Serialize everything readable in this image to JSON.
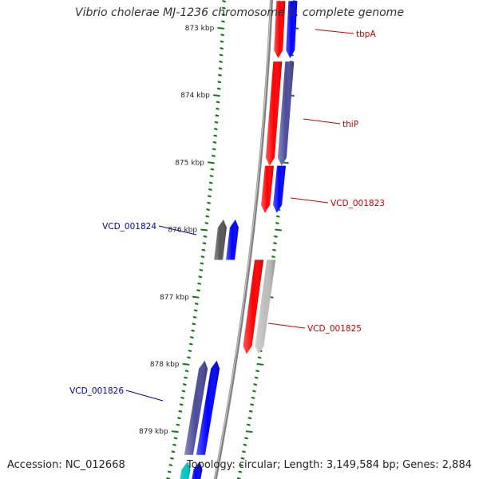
{
  "title": "Vibrio cholerae MJ-1236 chromosome 1, complete genome",
  "footer": {
    "accession": "Accession: NC_012668",
    "summary": "Topology: circular; Length: 3,149,584 bp; Genes: 2,884"
  },
  "colors": {
    "backbone": "#808080",
    "tick": "#1a7a1a",
    "label_tick": "#222222",
    "forward_label": "#cc0000",
    "reverse_label": "#0000aa",
    "gene_red": "#ff0000",
    "gene_blue": "#0000ff",
    "gene_slate": "#4b4b9a",
    "gene_gray": "#bdbdbd",
    "gene_darkgray": "#555555",
    "gene_cyan": "#00c8c8"
  },
  "ruler": [
    {
      "label": "873 kbp",
      "kbp": 873
    },
    {
      "label": "874 kbp",
      "kbp": 874
    },
    {
      "label": "875 kbp",
      "kbp": 875
    },
    {
      "label": "876 kbp",
      "kbp": 876
    },
    {
      "label": "877 kbp",
      "kbp": 877
    },
    {
      "label": "878 kbp",
      "kbp": 878
    },
    {
      "label": "879 kbp",
      "kbp": 879
    }
  ],
  "genes": [
    {
      "name": "tbpA",
      "strand": "forward",
      "start_kbp": 872.6,
      "end_kbp": 873.45,
      "color": "#ff0000",
      "labeled": true
    },
    {
      "name": "",
      "strand": "forward",
      "start_kbp": 872.6,
      "end_kbp": 873.45,
      "color": "#0000ff",
      "labeled": false,
      "track": "outer"
    },
    {
      "name": "thiP",
      "strand": "forward",
      "start_kbp": 873.5,
      "end_kbp": 875.05,
      "color": "#ff0000",
      "labeled": true
    },
    {
      "name": "",
      "strand": "forward",
      "start_kbp": 873.5,
      "end_kbp": 875.05,
      "color": "#4b4b9a",
      "labeled": false,
      "track": "outer"
    },
    {
      "name": "VCD_001823",
      "strand": "forward",
      "start_kbp": 875.05,
      "end_kbp": 875.75,
      "color": "#ff0000",
      "labeled": true
    },
    {
      "name": "",
      "strand": "forward",
      "start_kbp": 875.05,
      "end_kbp": 875.75,
      "color": "#0000ff",
      "labeled": false,
      "track": "outer"
    },
    {
      "name": "VCD_001824",
      "strand": "reverse",
      "start_kbp": 875.85,
      "end_kbp": 876.45,
      "color": "#0000ff",
      "labeled": true
    },
    {
      "name": "",
      "strand": "reverse",
      "start_kbp": 875.85,
      "end_kbp": 876.45,
      "color": "#555555",
      "labeled": false,
      "track": "outer"
    },
    {
      "name": "VCD_001825",
      "strand": "forward",
      "start_kbp": 876.45,
      "end_kbp": 877.85,
      "color": "#ff0000",
      "labeled": true
    },
    {
      "name": "",
      "strand": "forward",
      "start_kbp": 876.45,
      "end_kbp": 877.85,
      "color": "#bdbdbd",
      "labeled": false,
      "track": "outer"
    },
    {
      "name": "VCD_001826",
      "strand": "reverse",
      "start_kbp": 877.95,
      "end_kbp": 879.35,
      "color": "#0000ff",
      "labeled": true
    },
    {
      "name": "",
      "strand": "reverse",
      "start_kbp": 877.95,
      "end_kbp": 879.35,
      "color": "#4b4b9a",
      "labeled": false,
      "track": "outer"
    },
    {
      "name": "",
      "strand": "reverse",
      "start_kbp": 879.45,
      "end_kbp": 879.9,
      "color": "#0000ff",
      "labeled": false
    },
    {
      "name": "",
      "strand": "reverse",
      "start_kbp": 879.45,
      "end_kbp": 879.9,
      "color": "#00c8c8",
      "labeled": false,
      "track": "outer"
    }
  ]
}
